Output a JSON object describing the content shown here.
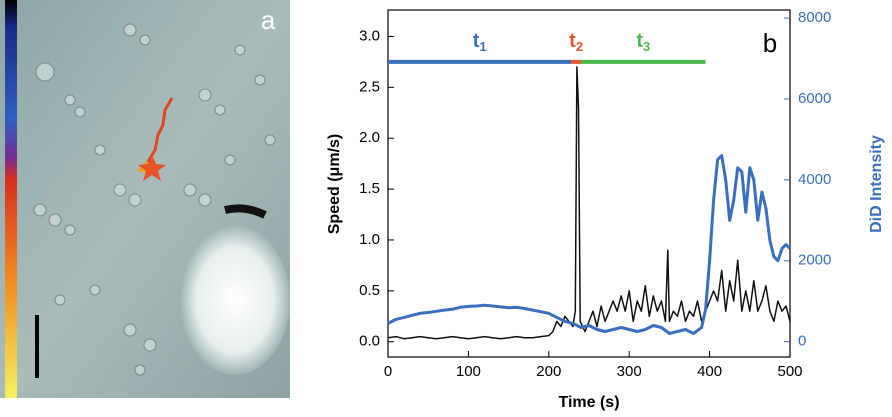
{
  "chart_data": {
    "type": "line",
    "panel_a_label": "a",
    "panel_b_label": "b",
    "xlabel": "Time (s)",
    "ylabel": "Speed (μm/s)",
    "y2label": "DiD Intensity",
    "xlim": [
      0,
      500
    ],
    "xticks": [
      0,
      100,
      200,
      300,
      400,
      500
    ],
    "ylim": [
      -0.15,
      3.26
    ],
    "yticks": [
      {
        "value": 0,
        "label": "0.0"
      },
      0.5,
      {
        "value": 1,
        "label": "1.0"
      },
      1.5,
      {
        "value": 2,
        "label": "2.0"
      },
      2.5,
      {
        "value": 3,
        "label": "3.0"
      }
    ],
    "y2lim": [
      -380,
      8200
    ],
    "y2ticks": [
      0,
      2000,
      4000,
      6000,
      8000
    ],
    "phases": [
      {
        "label": "t",
        "subscript": "1",
        "start": 0,
        "end": 228,
        "color": "#3a6fc0"
      },
      {
        "label": "t",
        "subscript": "2",
        "start": 228,
        "end": 240,
        "color": "#e8542a"
      },
      {
        "label": "t",
        "subscript": "3",
        "start": 240,
        "end": 395,
        "color": "#4cb84c"
      }
    ],
    "phase_level": 2.75,
    "series": [
      {
        "color": "#111111",
        "x": [
          0,
          10,
          20,
          30,
          40,
          50,
          60,
          70,
          80,
          90,
          100,
          110,
          120,
          130,
          140,
          150,
          160,
          170,
          180,
          190,
          200,
          205,
          210,
          215,
          220,
          225,
          230,
          233,
          235,
          237,
          239,
          245,
          250,
          255,
          260,
          265,
          270,
          275,
          280,
          285,
          290,
          295,
          300,
          305,
          310,
          315,
          320,
          325,
          330,
          335,
          340,
          345,
          348,
          350,
          355,
          360,
          365,
          370,
          375,
          380,
          385,
          390,
          395,
          400,
          405,
          410,
          415,
          420,
          425,
          430,
          435,
          440,
          445,
          450,
          455,
          460,
          465,
          470,
          475,
          480,
          485,
          490,
          495,
          500
        ],
        "values": [
          0.04,
          0.05,
          0.03,
          0.04,
          0.05,
          0.04,
          0.03,
          0.04,
          0.05,
          0.04,
          0.03,
          0.04,
          0.05,
          0.04,
          0.03,
          0.04,
          0.05,
          0.04,
          0.04,
          0.05,
          0.06,
          0.1,
          0.2,
          0.15,
          0.25,
          0.2,
          0.15,
          0.3,
          2.7,
          2.3,
          0.2,
          0.1,
          0.2,
          0.3,
          0.15,
          0.35,
          0.2,
          0.3,
          0.4,
          0.3,
          0.45,
          0.3,
          0.5,
          0.2,
          0.4,
          0.3,
          0.55,
          0.25,
          0.45,
          0.3,
          0.4,
          0.2,
          0.9,
          0.2,
          0.3,
          0.25,
          0.4,
          0.2,
          0.3,
          0.25,
          0.4,
          0.2,
          0.3,
          0.4,
          0.5,
          0.4,
          0.7,
          0.3,
          0.6,
          0.4,
          0.8,
          0.3,
          0.5,
          0.3,
          0.6,
          0.3,
          0.4,
          0.55,
          0.3,
          0.2,
          0.4,
          0.3,
          0.35,
          0.2
        ]
      },
      {
        "color": "#3a6fc0",
        "axis": "y2",
        "x": [
          0,
          10,
          20,
          30,
          40,
          50,
          60,
          70,
          80,
          90,
          100,
          110,
          120,
          130,
          140,
          150,
          160,
          170,
          180,
          190,
          200,
          210,
          220,
          230,
          240,
          250,
          260,
          270,
          280,
          290,
          300,
          310,
          320,
          330,
          340,
          350,
          360,
          370,
          380,
          390,
          395,
          400,
          405,
          410,
          415,
          420,
          425,
          430,
          435,
          440,
          445,
          450,
          455,
          460,
          465,
          470,
          475,
          480,
          485,
          490,
          495,
          500
        ],
        "values": [
          450,
          550,
          600,
          650,
          700,
          720,
          750,
          780,
          800,
          850,
          870,
          880,
          900,
          880,
          860,
          840,
          850,
          820,
          780,
          740,
          700,
          600,
          500,
          450,
          350,
          400,
          300,
          250,
          300,
          350,
          300,
          250,
          300,
          400,
          350,
          200,
          250,
          300,
          200,
          350,
          800,
          2000,
          3500,
          4500,
          4600,
          4000,
          3000,
          3500,
          4300,
          4200,
          3200,
          4300,
          4000,
          3000,
          3700,
          3300,
          2500,
          2100,
          2000,
          2300,
          2400,
          2300
        ]
      }
    ]
  }
}
